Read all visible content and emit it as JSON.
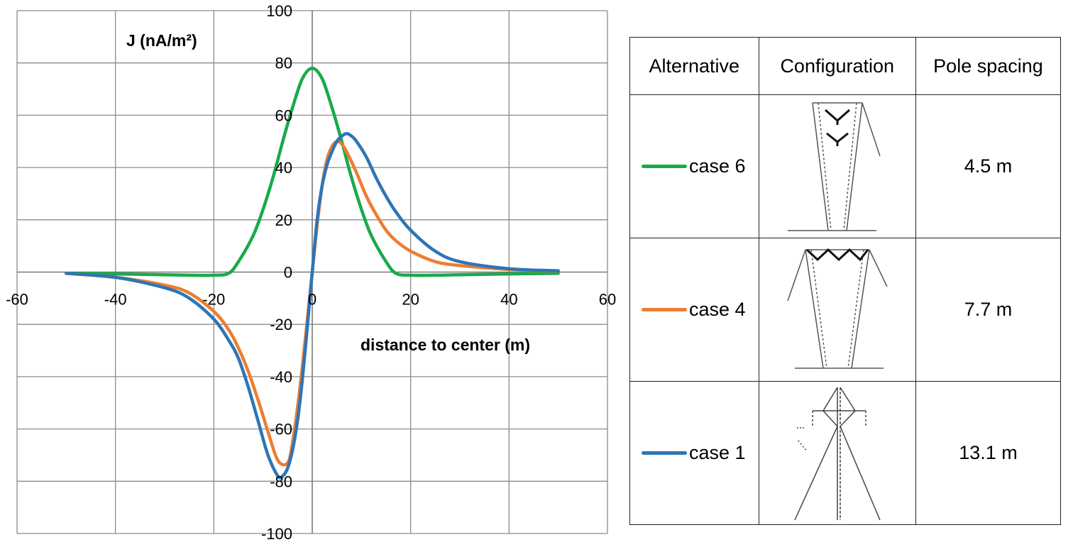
{
  "chart_data": {
    "type": "line",
    "title": "",
    "xlabel": "distance to center (m)",
    "ylabel": "J (nA/m²)",
    "xlim": [
      -60,
      60
    ],
    "ylim": [
      -100,
      100
    ],
    "x_ticks": [
      "-60",
      "-40",
      "-20",
      "0",
      "20",
      "40",
      "60"
    ],
    "y_ticks": [
      "100",
      "80",
      "60",
      "40",
      "20",
      "0",
      "-20",
      "-40",
      "-60",
      "-80",
      "-100"
    ],
    "grid": true,
    "series": [
      {
        "name": "case 6",
        "color": "#1aaa4a",
        "x": [
          -50,
          -40,
          -30,
          -25,
          -20,
          -17,
          -15,
          -12,
          -10,
          -8,
          -6,
          -4,
          -2,
          0,
          2,
          4,
          6,
          8,
          10,
          12,
          15,
          17,
          20,
          25,
          30,
          40,
          50
        ],
        "y": [
          -0.5,
          -0.7,
          -1,
          -1.2,
          -1.2,
          -0.5,
          4,
          14,
          24,
          36,
          50,
          63,
          74,
          78,
          74,
          63,
          50,
          36,
          24,
          14,
          4,
          -0.5,
          -1.2,
          -1.2,
          -1,
          -0.7,
          -0.5
        ]
      },
      {
        "name": "case 4",
        "color": "#ed7d31",
        "x": [
          -50,
          -40,
          -30,
          -25,
          -20,
          -17,
          -15,
          -13,
          -11,
          -9,
          -7,
          -5,
          -4,
          -3,
          -2,
          -1,
          0,
          1,
          2,
          3,
          4,
          5,
          6,
          7,
          9,
          11,
          13,
          15,
          17,
          20,
          25,
          30,
          40,
          50
        ],
        "y": [
          -0.5,
          -2,
          -5,
          -8,
          -15,
          -22,
          -29,
          -38,
          -49,
          -61,
          -72,
          -73,
          -65,
          -52,
          -36,
          -18,
          0,
          18,
          33,
          43,
          48,
          50,
          49,
          46,
          38,
          29,
          22,
          16,
          12,
          8,
          4,
          2.5,
          1,
          0.4
        ]
      },
      {
        "name": "case 1",
        "color": "#2e75b6",
        "x": [
          -50,
          -40,
          -30,
          -25,
          -20,
          -17,
          -15,
          -13,
          -11,
          -9,
          -7,
          -6,
          -5,
          -4,
          -3,
          -2,
          -1,
          0,
          1,
          2,
          3,
          4,
          5,
          6,
          7,
          8,
          9,
          11,
          13,
          15,
          17,
          20,
          25,
          30,
          40,
          50
        ],
        "y": [
          -0.5,
          -2,
          -6,
          -10,
          -18,
          -26,
          -33,
          -44,
          -57,
          -70,
          -78,
          -78,
          -75,
          -68,
          -57,
          -41,
          -21,
          0,
          20,
          33,
          41,
          46,
          50,
          52,
          53,
          52,
          50,
          44,
          36,
          29,
          23,
          16,
          8,
          4,
          1.3,
          0.5
        ]
      }
    ]
  },
  "table": {
    "headers": [
      "Alternative",
      "Configuration",
      "Pole spacing"
    ],
    "rows": [
      {
        "label": "case 6",
        "color": "#1aaa4a",
        "pole_spacing": "4.5 m"
      },
      {
        "label": "case 4",
        "color": "#ed7d31",
        "pole_spacing": "7.7 m"
      },
      {
        "label": "case 1",
        "color": "#2e75b6",
        "pole_spacing": "13.1 m"
      }
    ]
  }
}
